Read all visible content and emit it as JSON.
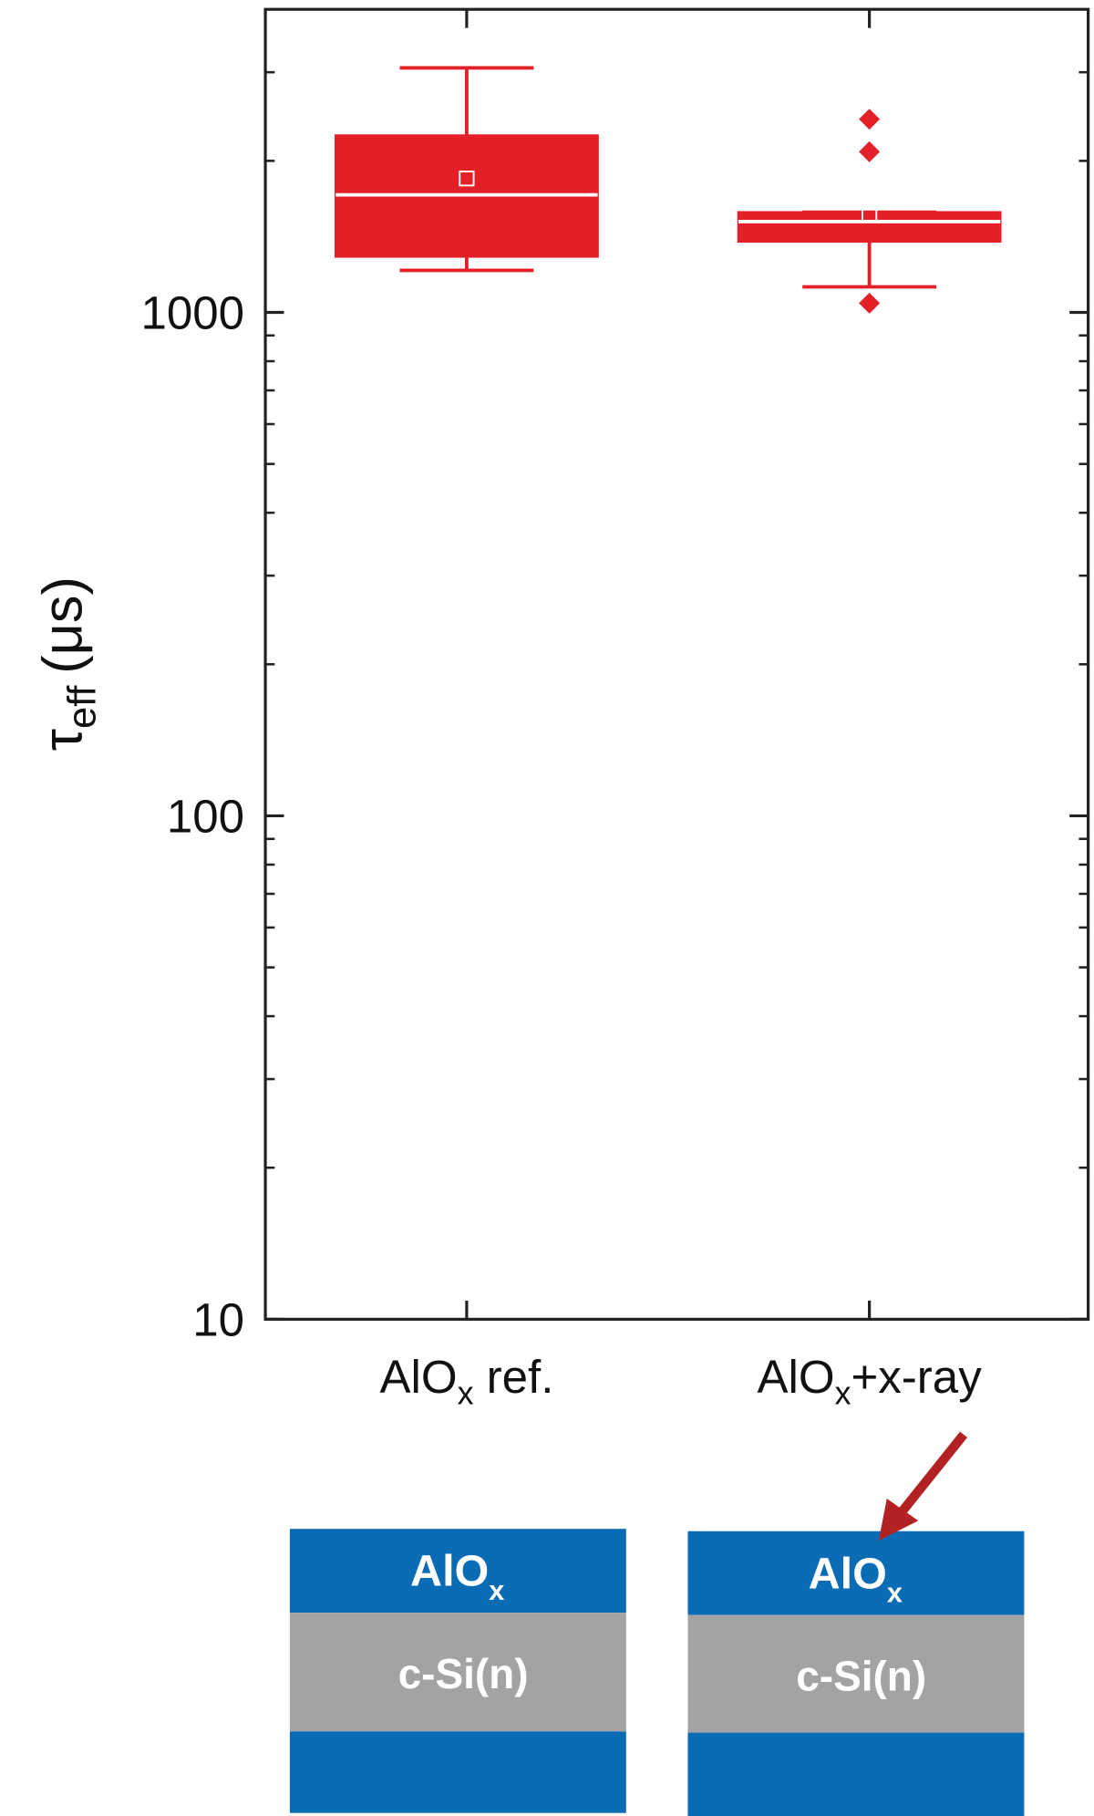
{
  "chart_data": {
    "type": "box",
    "y_label": {
      "symbol": "τ",
      "subscript": "eff",
      "unit": "(μs)"
    },
    "categories": [
      {
        "main": "AlO",
        "sub": "x",
        "tail": " ref."
      },
      {
        "main": "AlO",
        "sub": "x",
        "tail": "+x-ray"
      }
    ],
    "boxes": [
      {
        "whisker_low": 1212,
        "q1": 1291,
        "median": 1712,
        "q3": 2246,
        "whisker_high": 3060,
        "mean": 1845,
        "outliers": []
      },
      {
        "whisker_low": 1124,
        "q1": 1383,
        "median": 1515,
        "q3": 1581,
        "whisker_high": 1581,
        "mean": 1568,
        "outliers": [
          2420,
          2085,
          1043
        ]
      }
    ],
    "color": "#e32028",
    "log_y": true,
    "ylim": [
      10,
      4000
    ],
    "yticks": [
      10,
      100,
      1000
    ],
    "minor_yticks": [
      20,
      30,
      40,
      50,
      60,
      70,
      80,
      90,
      200,
      300,
      400,
      500,
      600,
      700,
      800,
      900,
      2000,
      3000
    ]
  },
  "diagrams": [
    {
      "top_main": "AlO",
      "top_sub": "x",
      "middle": "c-Si(n)"
    },
    {
      "top_main": "AlO",
      "top_sub": "x",
      "middle": "c-Si(n)"
    }
  ]
}
